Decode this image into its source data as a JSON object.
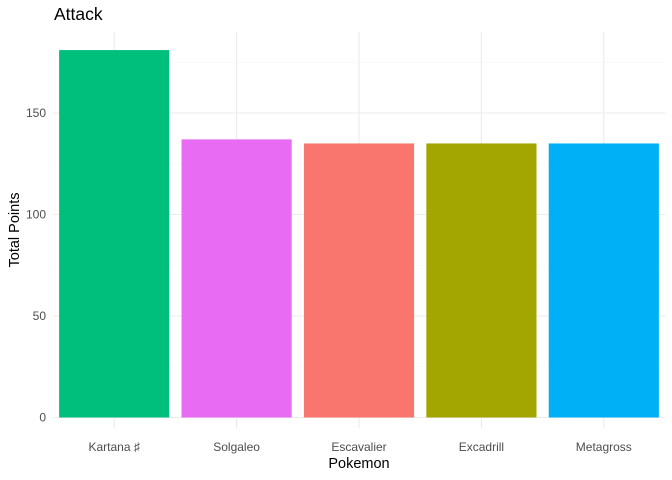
{
  "chart_data": {
    "type": "bar",
    "title": "Attack",
    "xlabel": "Pokemon",
    "ylabel": "Total Points",
    "categories": [
      "Kartana ♯",
      "Solgaleo",
      "Escavalier",
      "Excadrill",
      "Metagross"
    ],
    "values": [
      181,
      137,
      135,
      135,
      135
    ],
    "colors": [
      "#00BF7D",
      "#E76BF3",
      "#F8766D",
      "#A3A500",
      "#00B0F6"
    ],
    "ylim": [
      0,
      190
    ],
    "yticks": [
      0,
      50,
      100,
      150
    ],
    "grid": true,
    "legend": "none"
  }
}
